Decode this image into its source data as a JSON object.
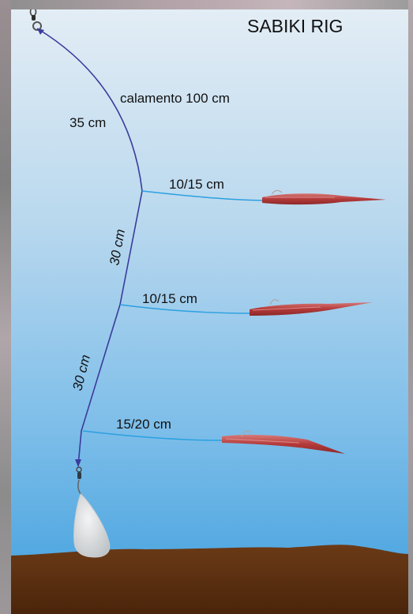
{
  "title": "SABIKI RIG",
  "labels": {
    "main_line": "calamento 100 cm",
    "top_segment": "35 cm",
    "mid_segment_1": "30 cm",
    "mid_segment_2": "30 cm",
    "dropper_1": "10/15 cm",
    "dropper_2": "10/15 cm",
    "dropper_3": "15/20 cm"
  },
  "colors": {
    "water_top": "#dde9f3",
    "water_bottom": "#3f9fde",
    "seabed": "#5a2e10",
    "main_line": "#3b3b9c",
    "dropper_line": "#2aa0e0",
    "lure": "#b74040",
    "sinker": "#d9dadb"
  },
  "icons": [
    "swivel-icon",
    "sinker-icon",
    "lure-icon"
  ]
}
